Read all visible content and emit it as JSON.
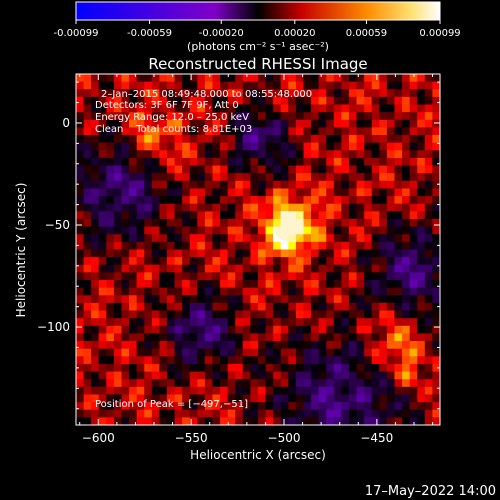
{
  "colorbar": {
    "ticks": [
      "-0.00099",
      "-0.00059",
      "-0.00020",
      "0.00020",
      "0.00059",
      "0.00099"
    ],
    "tick_values": [
      -0.00099,
      -0.00059,
      -0.0002,
      0.0002,
      0.00059,
      0.00099
    ],
    "units": "(photons cm⁻² s⁻¹ asec⁻²)"
  },
  "chart_data": {
    "type": "heatmap",
    "title": "Reconstructed RHESSI Image",
    "xlabel": "Heliocentric X (arcsec)",
    "ylabel": "Heliocentric Y (arcsec)",
    "xlim": [
      -612,
      -416
    ],
    "ylim": [
      -148,
      24
    ],
    "x_ticks": [
      -600,
      -550,
      -500,
      -450
    ],
    "x_tick_labels": [
      "−600",
      "−550",
      "−500",
      "−450"
    ],
    "y_ticks": [
      0,
      -50,
      -100
    ],
    "y_tick_labels": [
      "0",
      "−50",
      "−100"
    ],
    "peak": {
      "x": -497,
      "y": -51
    },
    "colormap": "rhessi-inverted-hot",
    "color_range": [
      -0.00099,
      0.00099
    ],
    "annotations": [
      "2–Jan–2015 08:49:48.000 to 08:55:48.000",
      "Detectors: 3F 6F 7F 9F, Att 0",
      "Energy Range: 12.0 – 25.0 keV",
      "Clean    Total counts: 8.81E+03"
    ],
    "peak_label": "Position of Peak = [−497,−51]"
  },
  "footer": {
    "timestamp": "17–May–2022 14:00"
  }
}
